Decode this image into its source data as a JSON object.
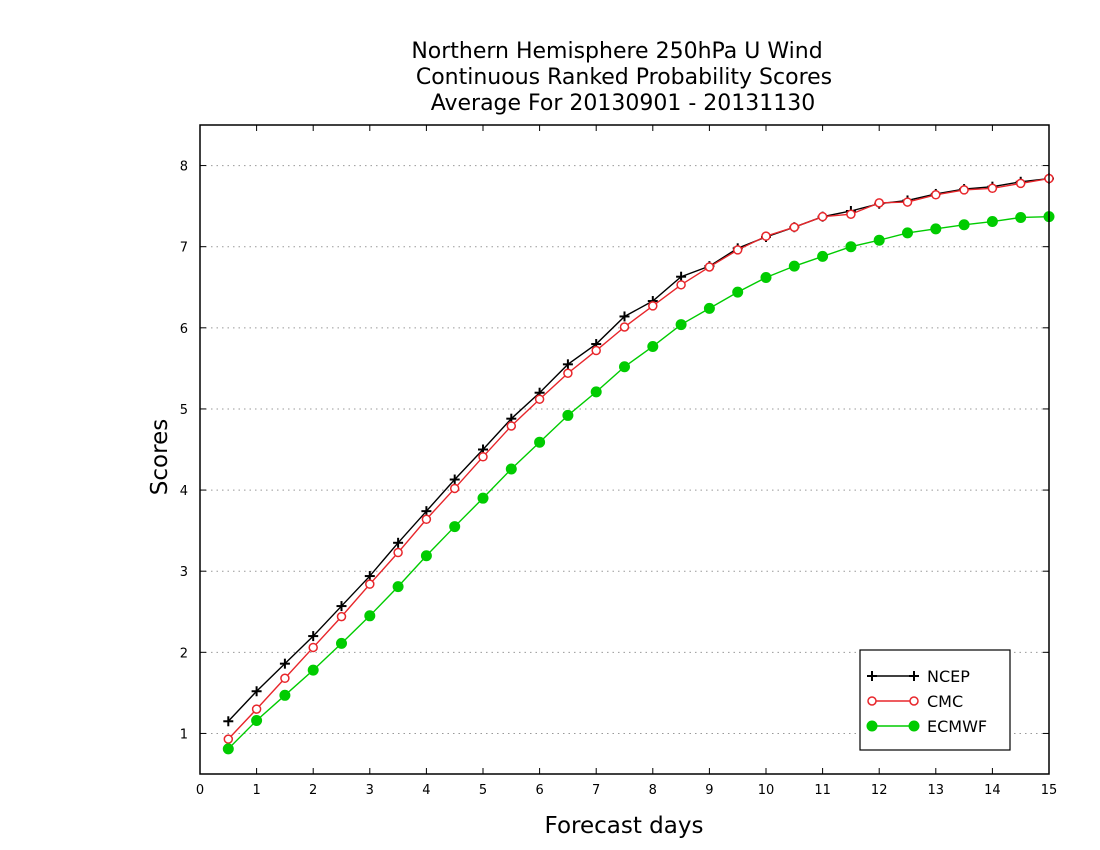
{
  "chart_data": {
    "type": "line",
    "title_lines": [
      "Northern Hemisphere 250hPa U Wind",
      "Continuous Ranked Probability Scores",
      "Average For 20130901 - 20131130"
    ],
    "xlabel": "Forecast days",
    "ylabel": "Scores",
    "xlim": [
      0,
      15
    ],
    "ylim": [
      0.5,
      8.5
    ],
    "xticks": [
      0,
      1,
      2,
      3,
      4,
      5,
      6,
      7,
      8,
      9,
      10,
      11,
      12,
      13,
      14,
      15
    ],
    "yticks": [
      1,
      2,
      3,
      4,
      5,
      6,
      7,
      8
    ],
    "grid": "horizontal dotted",
    "legend_position": "bottom-right",
    "x": [
      0.5,
      1,
      1.5,
      2,
      2.5,
      3,
      3.5,
      4,
      4.5,
      5,
      5.5,
      6,
      6.5,
      7,
      7.5,
      8,
      8.5,
      9,
      9.5,
      10,
      10.5,
      11,
      11.5,
      12,
      12.5,
      13,
      13.5,
      14,
      14.5,
      15
    ],
    "series": [
      {
        "name": "NCEP",
        "color": "#000000",
        "marker": "plus",
        "values": [
          1.15,
          1.52,
          1.86,
          2.2,
          2.57,
          2.94,
          3.35,
          3.74,
          4.13,
          4.5,
          4.88,
          5.2,
          5.55,
          5.8,
          6.14,
          6.33,
          6.63,
          6.76,
          6.98,
          7.12,
          7.24,
          7.37,
          7.44,
          7.53,
          7.57,
          7.65,
          7.71,
          7.74,
          7.8,
          7.84
        ]
      },
      {
        "name": "CMC",
        "color": "#e8262b",
        "marker": "open-circle",
        "values": [
          0.93,
          1.3,
          1.68,
          2.06,
          2.44,
          2.84,
          3.23,
          3.64,
          4.02,
          4.41,
          4.79,
          5.12,
          5.44,
          5.72,
          6.01,
          6.27,
          6.53,
          6.75,
          6.96,
          7.13,
          7.24,
          7.37,
          7.4,
          7.54,
          7.55,
          7.64,
          7.7,
          7.72,
          7.78,
          7.84
        ]
      },
      {
        "name": "ECMWF",
        "color": "#00cc00",
        "marker": "filled-circle",
        "values": [
          0.81,
          1.16,
          1.47,
          1.78,
          2.11,
          2.45,
          2.81,
          3.19,
          3.55,
          3.9,
          4.26,
          4.59,
          4.92,
          5.21,
          5.52,
          5.77,
          6.04,
          6.24,
          6.44,
          6.62,
          6.76,
          6.88,
          7.0,
          7.08,
          7.17,
          7.22,
          7.27,
          7.31,
          7.36,
          7.37
        ]
      }
    ]
  }
}
